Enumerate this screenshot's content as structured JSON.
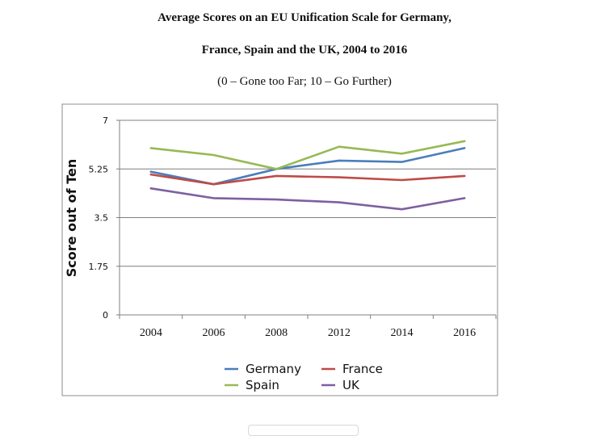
{
  "chart_data": {
    "type": "line",
    "title_line1": "Average Scores on an EU Unification Scale for Germany,",
    "title_line2": "France, Spain and the UK, 2004 to 2016",
    "subtitle": "(0 – Gone too Far; 10 – Go Further)",
    "ylabel": "Score out of Ten",
    "xlabel": "",
    "categories": [
      "2004",
      "2006",
      "2008",
      "2012",
      "2014",
      "2016"
    ],
    "yticks": [
      "0",
      "1.75",
      "3.5",
      "5.25",
      "7"
    ],
    "ylim": [
      0,
      7
    ],
    "grid": true,
    "legend_position": "bottom",
    "series": [
      {
        "name": "Germany",
        "color": "#4a7ebb",
        "values": [
          5.15,
          4.7,
          5.25,
          5.55,
          5.5,
          6.0
        ]
      },
      {
        "name": "France",
        "color": "#be4b48",
        "values": [
          5.05,
          4.7,
          5.0,
          4.95,
          4.85,
          5.0
        ]
      },
      {
        "name": "Spain",
        "color": "#98b954",
        "values": [
          6.0,
          5.75,
          5.25,
          6.05,
          5.8,
          6.25
        ]
      },
      {
        "name": "UK",
        "color": "#7d60a0",
        "values": [
          4.55,
          4.2,
          4.15,
          4.05,
          3.8,
          4.2
        ]
      }
    ]
  }
}
